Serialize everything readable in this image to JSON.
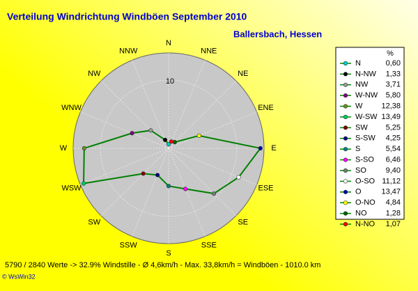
{
  "chart_data": {
    "type": "radar",
    "title": "Verteilung Windrichtung Windböen  September 2010",
    "subtitle": "Ballersbach, Hessen",
    "axis_labels": [
      "N",
      "NNE",
      "NE",
      "ENE",
      "E",
      "ESE",
      "SE",
      "SSE",
      "S",
      "SSW",
      "SW",
      "WSW",
      "W",
      "WNW",
      "NW",
      "NNW"
    ],
    "categories": [
      "N",
      "N-NW",
      "NW",
      "W-NW",
      "W",
      "W-SW",
      "SW",
      "S-SW",
      "S",
      "S-SO",
      "SO",
      "O-SO",
      "O",
      "O-NO",
      "NO",
      "N-NO"
    ],
    "values": [
      0.6,
      1.33,
      3.71,
      5.8,
      12.38,
      13.49,
      5.25,
      4.25,
      5.54,
      6.46,
      9.4,
      11.12,
      13.47,
      4.84,
      1.28,
      1.07
    ],
    "value_labels": [
      "0,60",
      "1,33",
      "3,71",
      "5,80",
      "12,38",
      "13,49",
      "5,25",
      "4,25",
      "5,54",
      "6,46",
      "9,40",
      "11,12",
      "13,47",
      "4,84",
      "1,28",
      "1,07"
    ],
    "marker_colors": [
      "#00cccc",
      "#000000",
      "#999999",
      "#800080",
      "#6b8e23",
      "#00cc66",
      "#800000",
      "#000080",
      "#008080",
      "#ff00ff",
      "#708070",
      "#ffffff",
      "#0000aa",
      "#ffff00",
      "#006400",
      "#ff0000"
    ],
    "line_color": "#008000",
    "rlim": [
      0,
      14
    ],
    "rticks": [
      10
    ],
    "legend_header": "%",
    "footer": "5790 / 2840 Werte  -> 32.9% Windstille   -   Ø 4,6km/h  -  Max. 33,8km/h = Windböen   -   1010.0 km",
    "credit": "© WsWin32"
  }
}
